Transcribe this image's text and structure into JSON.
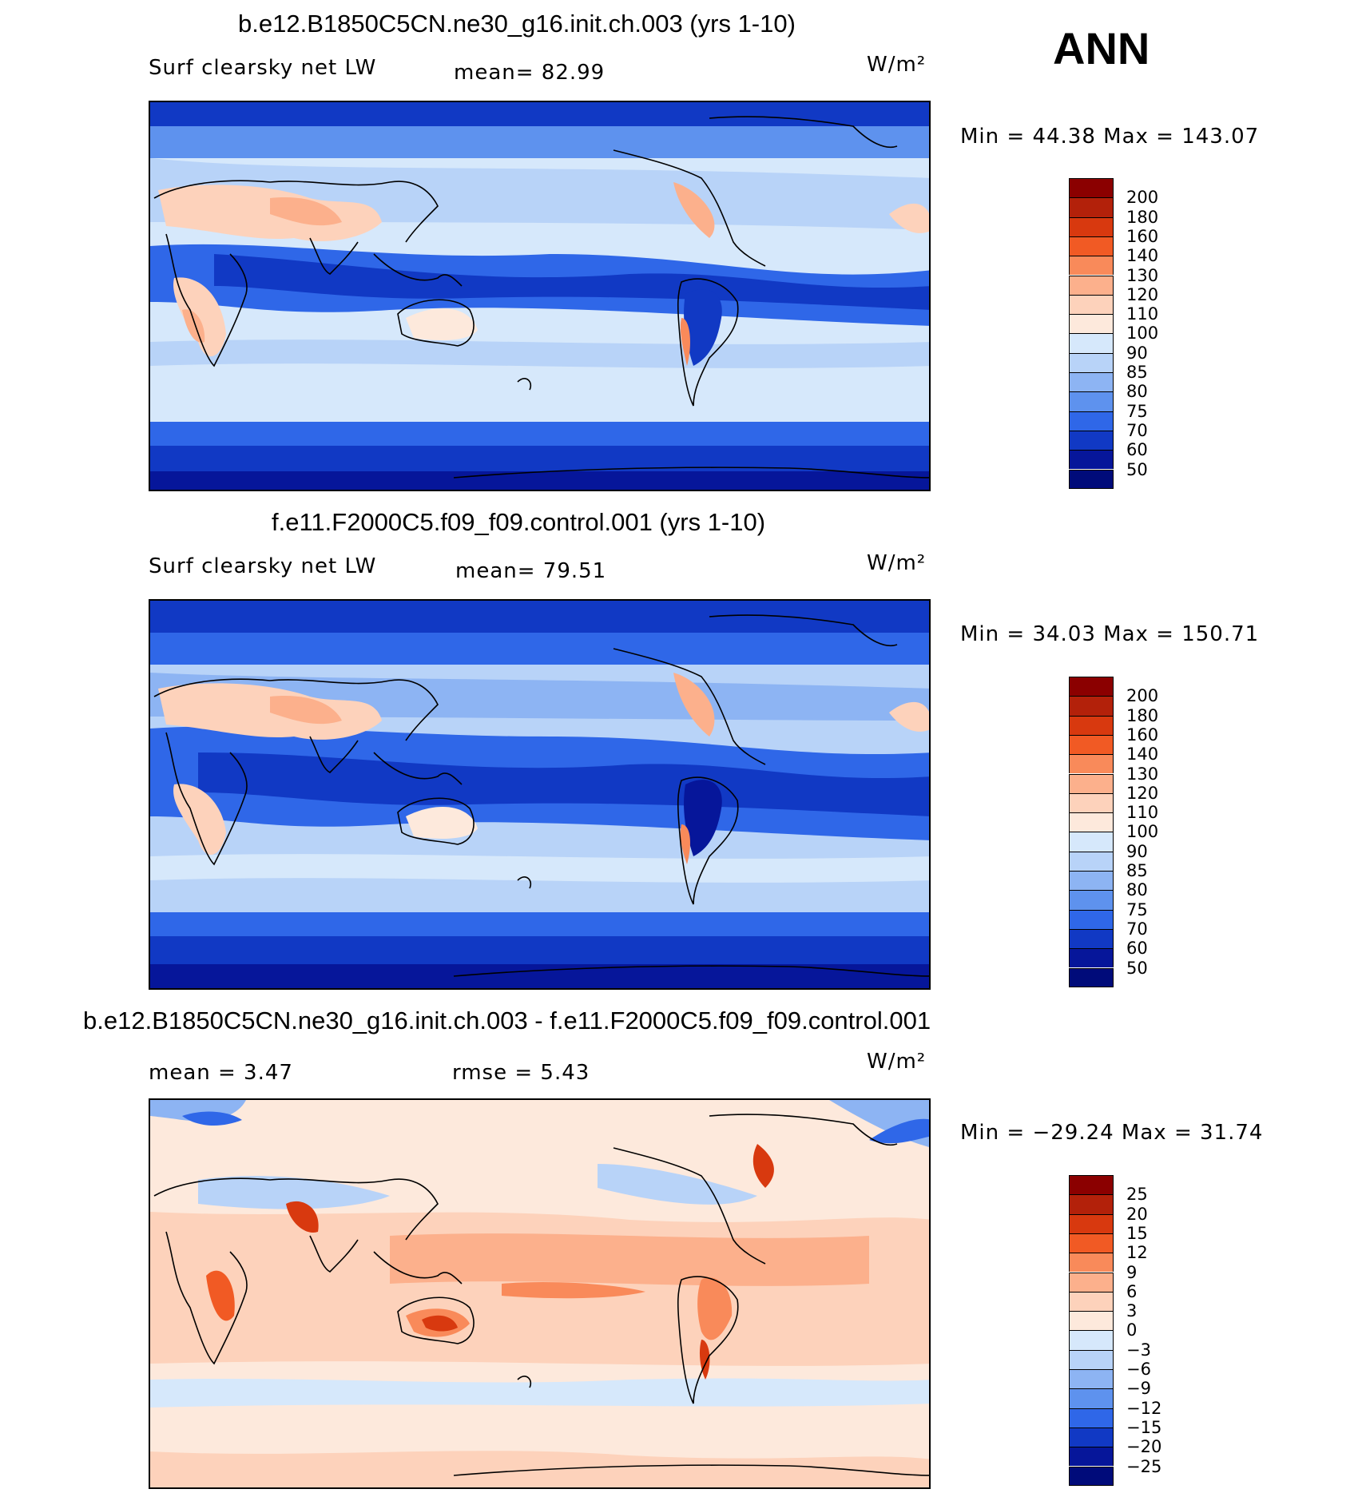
{
  "season": "ANN",
  "panels": [
    {
      "title": "b.e12.B1850C5CN.ne30_g16.init.ch.003 (yrs 1-10)",
      "variable": "Surf clearsky net LW",
      "stat1": "mean=   82.99",
      "stat2": "",
      "units": "W/m²",
      "minmax": "Min =   44.38  Max  =  143.07",
      "colorbar": {
        "labels": [
          "200",
          "180",
          "160",
          "140",
          "130",
          "120",
          "110",
          "100",
          "90",
          "85",
          "80",
          "75",
          "70",
          "60",
          "50"
        ],
        "colors": [
          "#8b0000",
          "#b3210a",
          "#d8390f",
          "#f15a24",
          "#f98a5a",
          "#fcb08c",
          "#fdd2bb",
          "#fde9dc",
          "#d6e8fb",
          "#b8d3f8",
          "#8db4f3",
          "#5e92ee",
          "#2f67e8",
          "#1139c4",
          "#06169a",
          "#000b7a"
        ]
      }
    },
    {
      "title": "f.e11.F2000C5.f09_f09.control.001 (yrs 1-10)",
      "variable": "Surf clearsky net LW",
      "stat1": "mean=   79.51",
      "stat2": "",
      "units": "W/m²",
      "minmax": "Min =   34.03  Max  =  150.71",
      "colorbar": {
        "labels": [
          "200",
          "180",
          "160",
          "140",
          "130",
          "120",
          "110",
          "100",
          "90",
          "85",
          "80",
          "75",
          "70",
          "60",
          "50"
        ],
        "colors": [
          "#8b0000",
          "#b3210a",
          "#d8390f",
          "#f15a24",
          "#f98a5a",
          "#fcb08c",
          "#fdd2bb",
          "#fde9dc",
          "#d6e8fb",
          "#b8d3f8",
          "#8db4f3",
          "#5e92ee",
          "#2f67e8",
          "#1139c4",
          "#06169a",
          "#000b7a"
        ]
      }
    },
    {
      "title": "b.e12.B1850C5CN.ne30_g16.init.ch.003 - f.e11.F2000C5.f09_f09.control.001",
      "variable": "",
      "stat1": "mean =     3.47",
      "stat2": "rmse =     5.43",
      "units": "W/m²",
      "minmax": "Min = −29.24  Max =   31.74",
      "colorbar": {
        "labels": [
          "25",
          "20",
          "15",
          "12",
          "9",
          "6",
          "3",
          "0",
          "−3",
          "−6",
          "−9",
          "−12",
          "−15",
          "−20",
          "−25"
        ],
        "colors": [
          "#8b0000",
          "#b3210a",
          "#d8390f",
          "#f15a24",
          "#f98a5a",
          "#fcb08c",
          "#fdd2bb",
          "#fde9dc",
          "#d6e8fb",
          "#b8d3f8",
          "#8db4f3",
          "#5e92ee",
          "#2f67e8",
          "#1139c4",
          "#06169a",
          "#000b7a"
        ]
      }
    }
  ]
}
